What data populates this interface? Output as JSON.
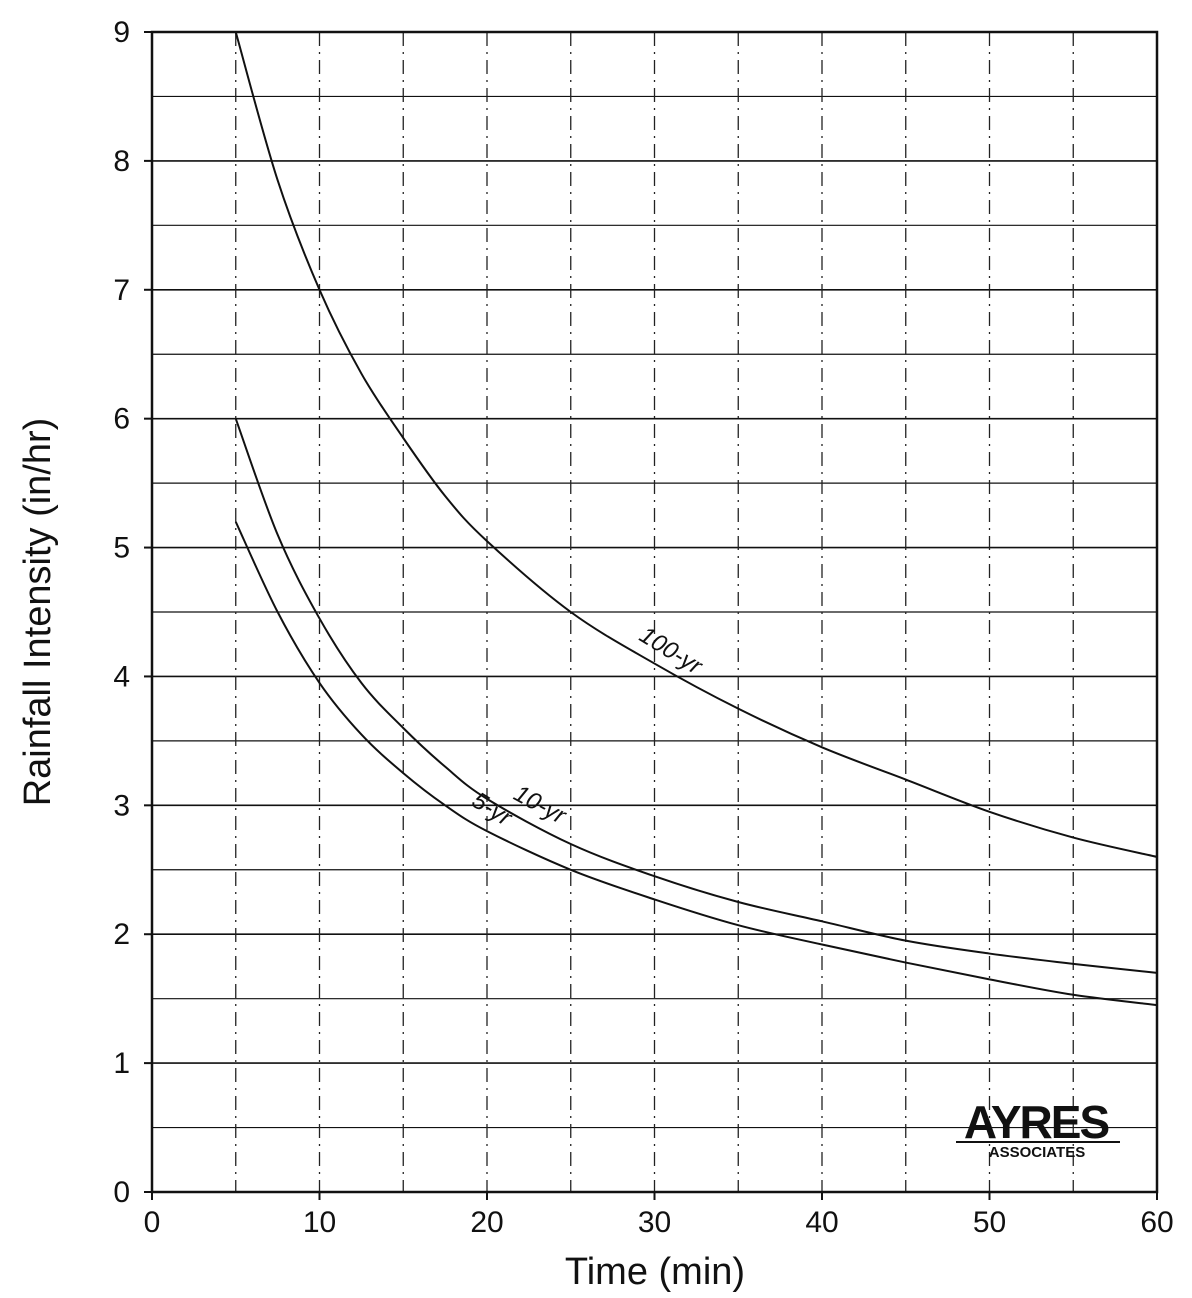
{
  "chart_data": {
    "type": "line",
    "title": "",
    "xlabel": "Time (min)",
    "ylabel": "Rainfall Intensity (in/hr)",
    "xlim": [
      0,
      60
    ],
    "ylim": [
      0,
      9
    ],
    "xticks": [
      0,
      10,
      20,
      30,
      40,
      50,
      60
    ],
    "yticks": [
      0,
      1,
      2,
      3,
      4,
      5,
      6,
      7,
      8,
      9
    ],
    "grid": true,
    "legend": "none",
    "series": [
      {
        "name": "100-yr",
        "x": [
          5,
          7.5,
          10,
          12.5,
          15,
          17.5,
          20,
          25,
          30,
          35,
          40,
          45,
          50,
          55,
          60
        ],
        "y": [
          9.0,
          7.85,
          7.0,
          6.35,
          5.85,
          5.4,
          5.05,
          4.5,
          4.1,
          3.75,
          3.45,
          3.2,
          2.95,
          2.75,
          2.6
        ]
      },
      {
        "name": "10-yr",
        "x": [
          5,
          7.5,
          10,
          12.5,
          15,
          17.5,
          20,
          25,
          30,
          35,
          40,
          45,
          50,
          55,
          60
        ],
        "y": [
          6.0,
          5.1,
          4.45,
          3.95,
          3.6,
          3.3,
          3.05,
          2.7,
          2.45,
          2.25,
          2.1,
          1.95,
          1.85,
          1.77,
          1.7
        ]
      },
      {
        "name": "5-yr",
        "x": [
          5,
          7.5,
          10,
          12.5,
          15,
          17.5,
          20,
          25,
          30,
          35,
          40,
          45,
          50,
          55,
          60
        ],
        "y": [
          5.2,
          4.5,
          3.95,
          3.55,
          3.25,
          3.0,
          2.8,
          2.5,
          2.27,
          2.07,
          1.92,
          1.78,
          1.65,
          1.53,
          1.45
        ]
      }
    ]
  },
  "logo": {
    "main": "AYRES",
    "sub": "ASSOCIATES"
  }
}
